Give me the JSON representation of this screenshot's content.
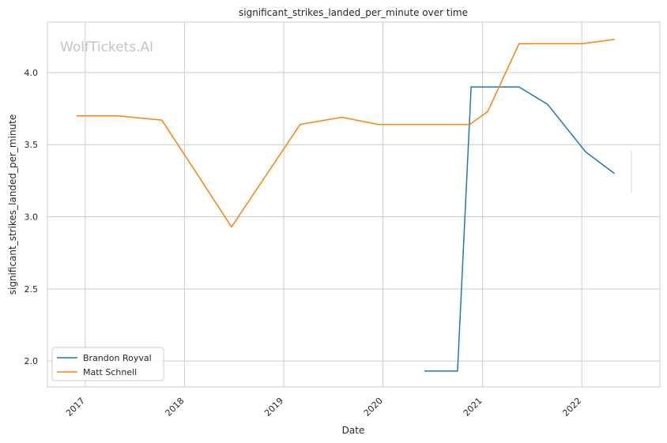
{
  "watermark": "WolfTickets.AI",
  "chart_data": {
    "type": "line",
    "title": "significant_strikes_landed_per_minute over time",
    "xlabel": "Date",
    "ylabel": "significant_strikes_landed_per_minute",
    "x_ticks": [
      "2017",
      "2018",
      "2019",
      "2020",
      "2021",
      "2022"
    ],
    "y_ticks": [
      "2.0",
      "2.5",
      "3.0",
      "3.5",
      "4.0"
    ],
    "xlim": [
      "2016-08-15",
      "2022-10-15"
    ],
    "ylim": [
      1.82,
      4.35
    ],
    "grid": true,
    "legend_position": "lower-left",
    "series": [
      {
        "name": "Brandon Royval",
        "color": "#1f77b4",
        "points": [
          [
            "2020-06-01",
            1.93
          ],
          [
            "2020-10-01",
            1.93
          ],
          [
            "2020-11-20",
            3.9
          ],
          [
            "2021-05-15",
            3.9
          ],
          [
            "2021-08-28",
            3.78
          ],
          [
            "2022-01-15",
            3.45
          ],
          [
            "2022-05-01",
            3.3
          ]
        ]
      },
      {
        "name": "Matt Schnell",
        "color": "#ff7f0e",
        "points": [
          [
            "2016-12-01",
            3.7
          ],
          [
            "2017-05-01",
            3.7
          ],
          [
            "2017-10-10",
            3.67
          ],
          [
            "2018-06-23",
            2.93
          ],
          [
            "2019-03-02",
            3.64
          ],
          [
            "2019-08-03",
            3.69
          ],
          [
            "2019-12-15",
            3.64
          ],
          [
            "2020-11-15",
            3.64
          ],
          [
            "2021-01-20",
            3.73
          ],
          [
            "2021-05-15",
            4.2
          ],
          [
            "2022-01-01",
            4.2
          ],
          [
            "2022-05-01",
            4.23
          ]
        ]
      }
    ]
  }
}
